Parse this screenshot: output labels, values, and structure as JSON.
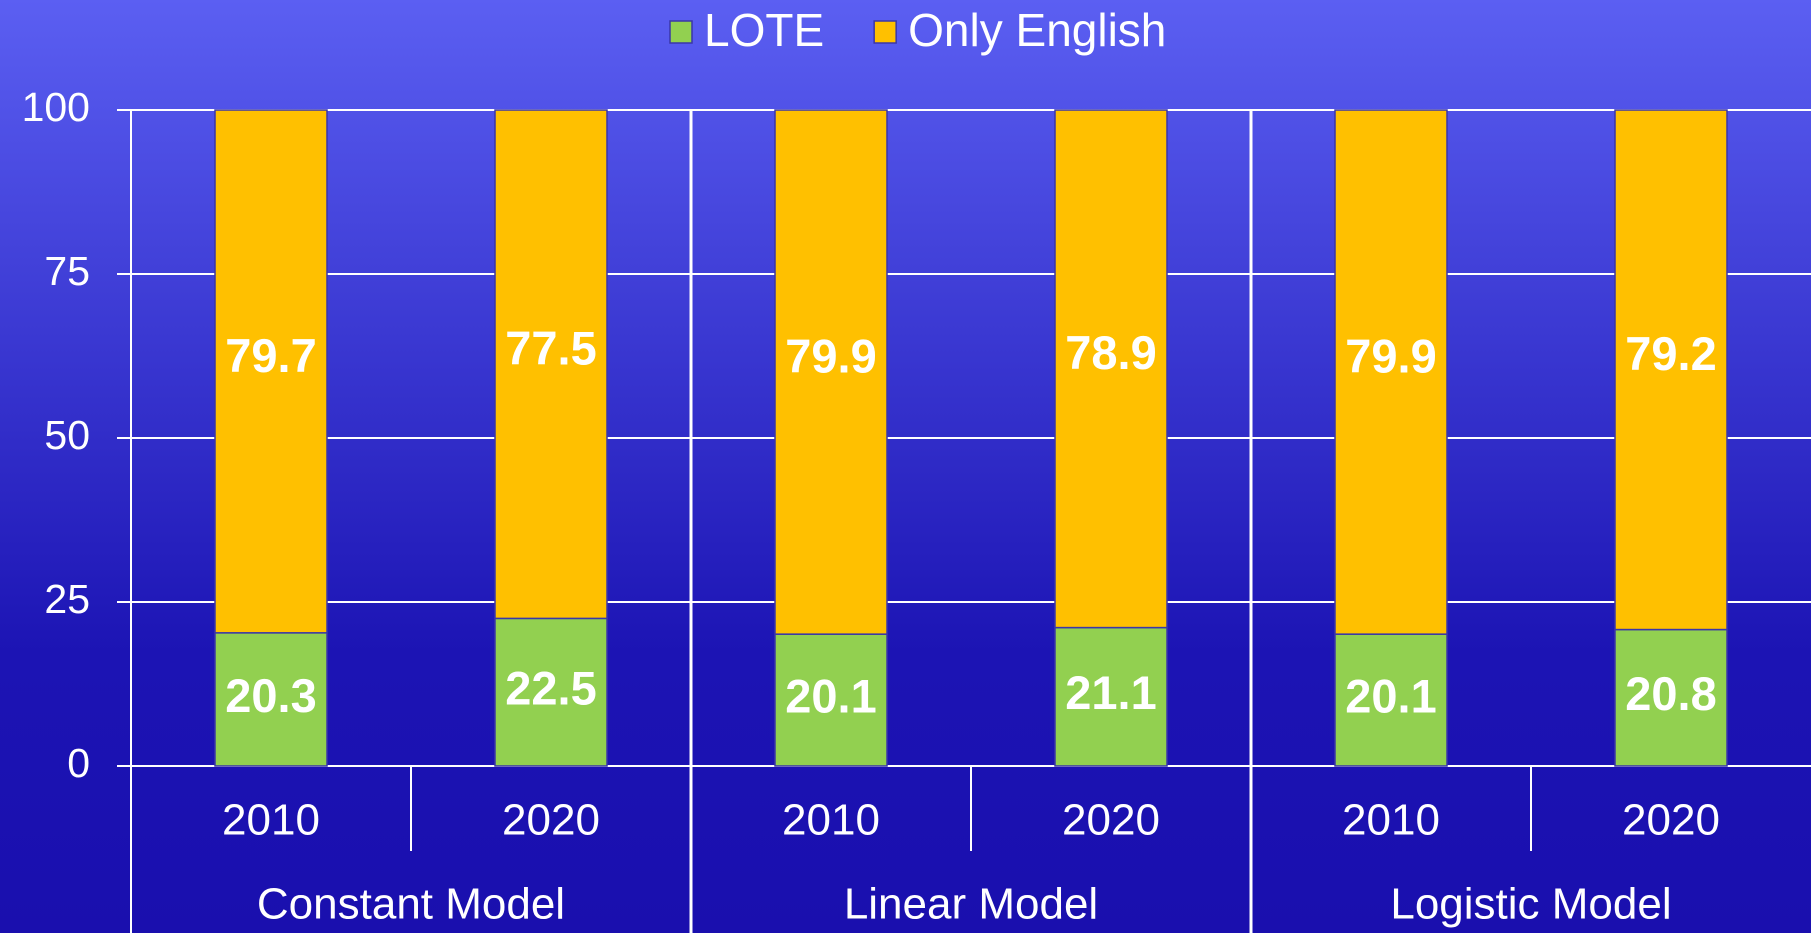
{
  "chart_data": {
    "type": "stacked-bar",
    "categories": [
      "2010",
      "2020",
      "2010",
      "2020",
      "2010",
      "2020"
    ],
    "groups": [
      "Constant Model",
      "Linear Model",
      "Logistic Model"
    ],
    "series": [
      {
        "name": "LOTE",
        "color": "#92d050",
        "values": [
          20.3,
          22.5,
          20.1,
          21.1,
          20.1,
          20.8
        ]
      },
      {
        "name": "Only English",
        "color": "#ffc000",
        "values": [
          79.7,
          77.5,
          79.9,
          78.9,
          79.9,
          79.2
        ]
      }
    ],
    "ylim": [
      0,
      100
    ],
    "yticks": [
      0,
      25,
      50,
      75,
      100
    ],
    "grid": true,
    "legend": "top"
  }
}
